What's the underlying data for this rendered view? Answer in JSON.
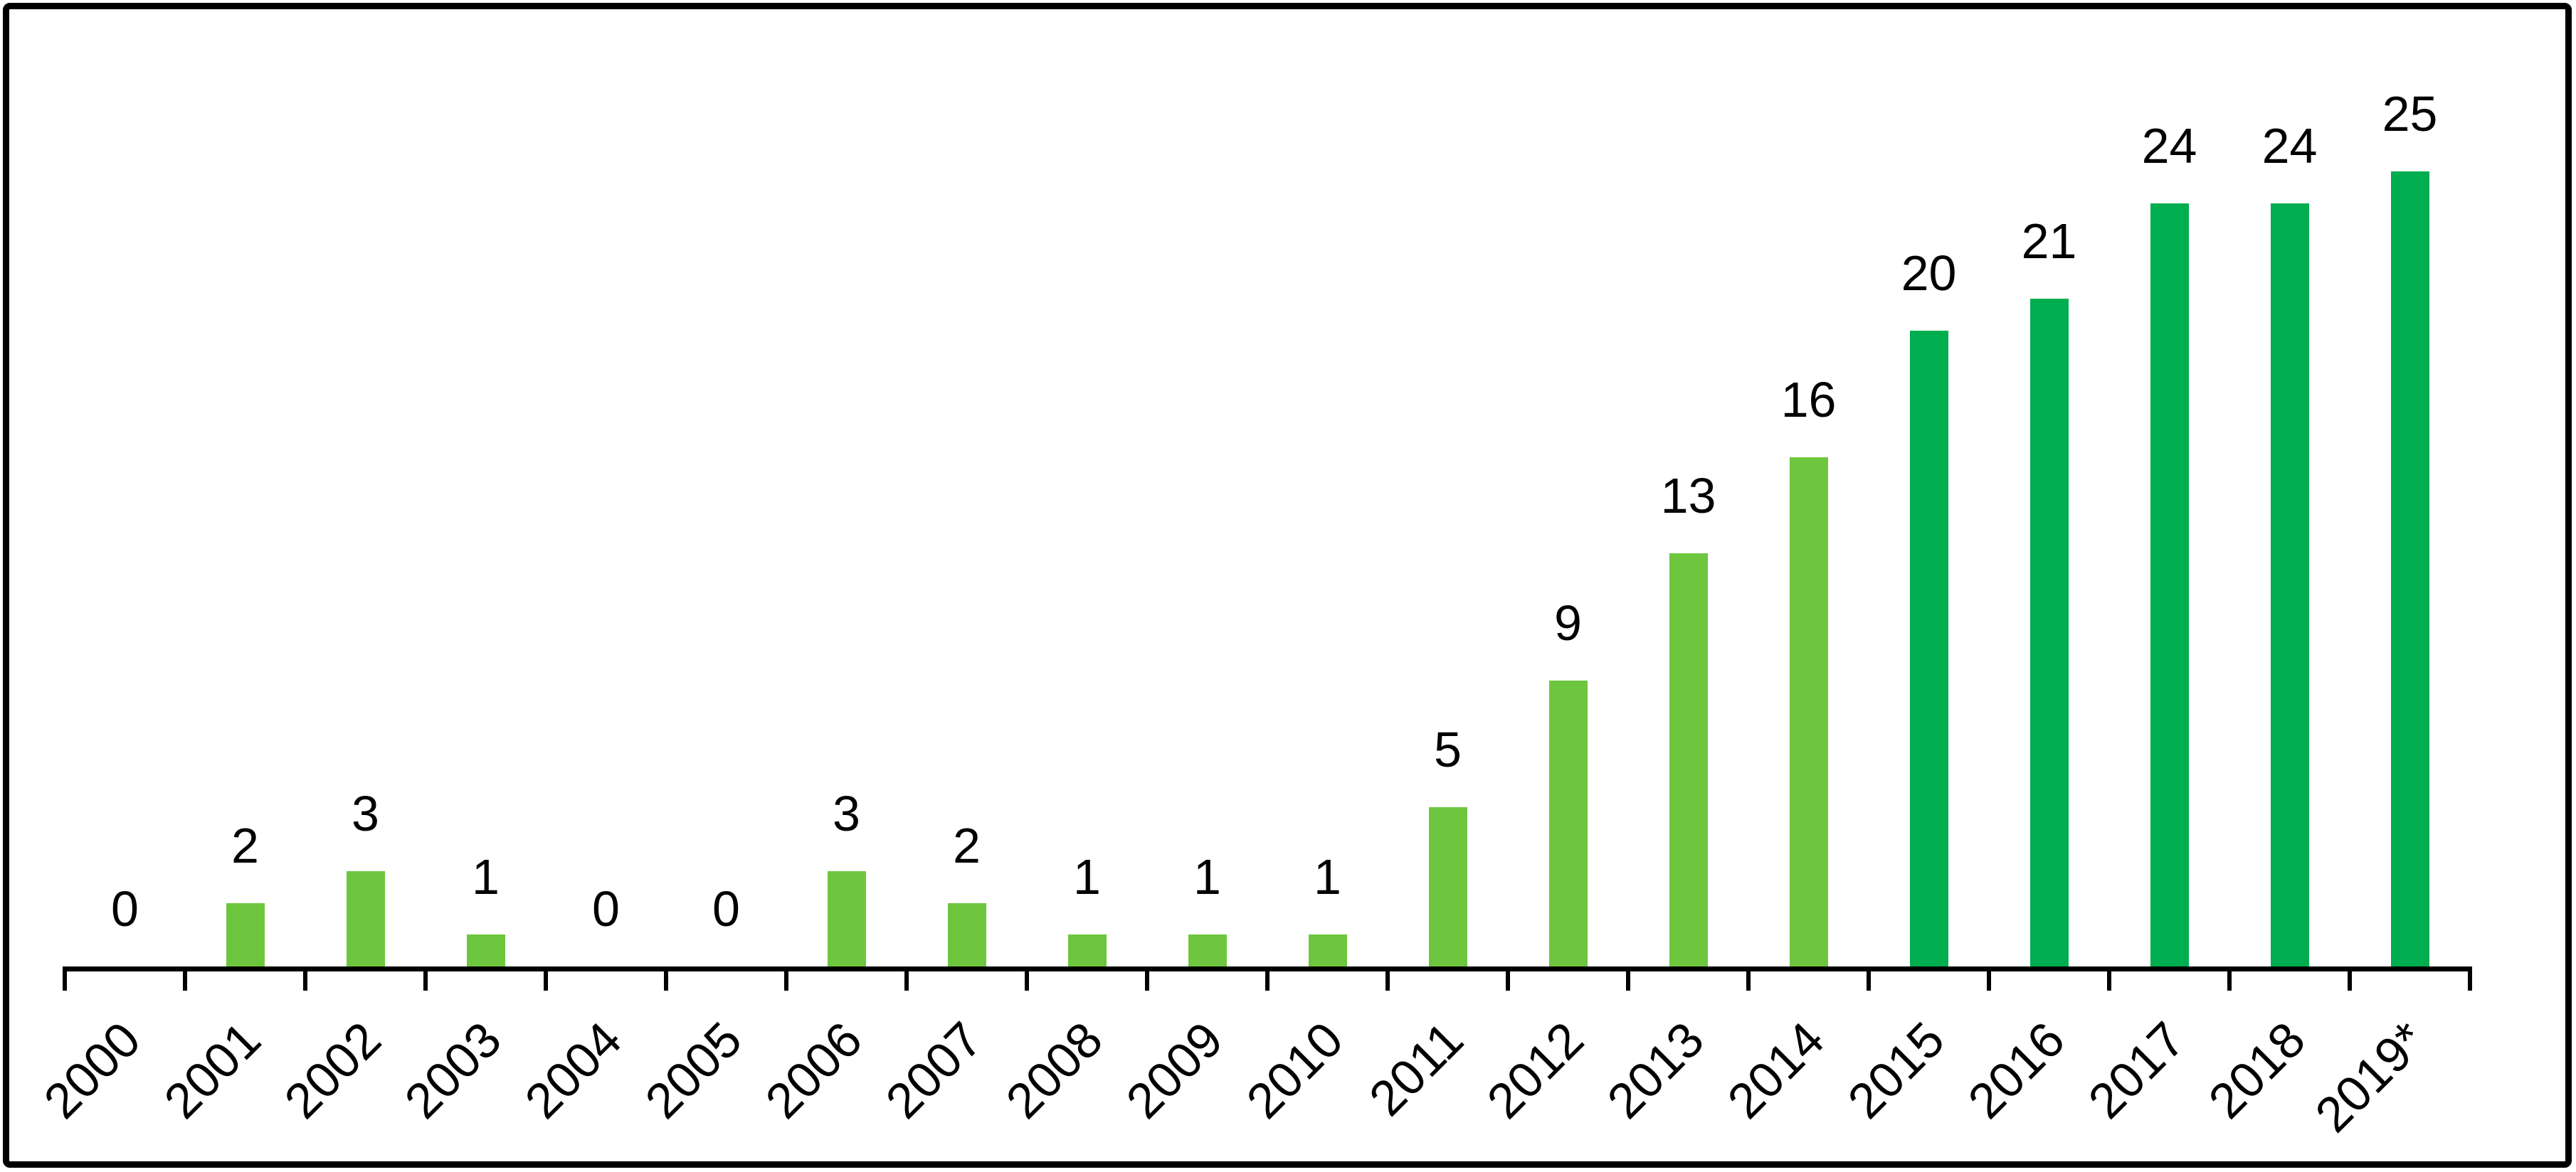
{
  "chart_data": {
    "type": "bar",
    "title": "",
    "xlabel": "",
    "ylabel": "",
    "categories": [
      "2000",
      "2001",
      "2002",
      "2003",
      "2004",
      "2005",
      "2006",
      "2007",
      "2008",
      "2009",
      "2010",
      "2011",
      "2012",
      "2013",
      "2014",
      "2015",
      "2016",
      "2017",
      "2018",
      "2019*"
    ],
    "values": [
      0,
      2,
      3,
      1,
      0,
      0,
      3,
      2,
      1,
      1,
      1,
      5,
      9,
      13,
      16,
      20,
      21,
      24,
      24,
      25
    ],
    "data_labels": [
      "0",
      "2",
      "3",
      "1",
      "0",
      "0",
      "3",
      "2",
      "1",
      "1",
      "1",
      "5",
      "9",
      "13",
      "16",
      "20",
      "21",
      "24",
      "24",
      "25"
    ],
    "bar_shades": [
      "light",
      "light",
      "light",
      "light",
      "light",
      "light",
      "light",
      "light",
      "light",
      "light",
      "light",
      "light",
      "light",
      "light",
      "light",
      "dark",
      "dark",
      "dark",
      "dark",
      "dark"
    ],
    "colors": {
      "bar_light": "#6EC63E",
      "bar_dark": "#00AD4F",
      "axis": "#000000",
      "text": "#000000",
      "background": "#FFFFFF",
      "border": "#000000"
    },
    "ylim": [
      0,
      25
    ],
    "grid": false,
    "legend": "none",
    "y_axis_visible": false,
    "x_tick_rotation_deg": 45,
    "data_label_position": "outside-end"
  }
}
